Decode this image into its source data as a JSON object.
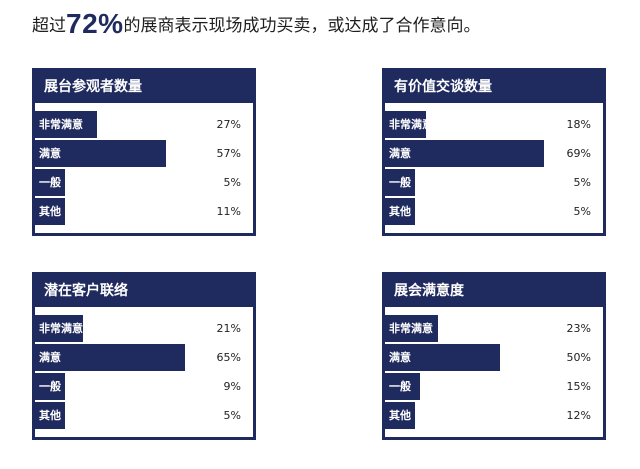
{
  "headline": {
    "prefix": "超过",
    "highlight": "72%",
    "suffix": "的展商表示现场成功买卖，或达成了合作意向。"
  },
  "chart_data": [
    {
      "type": "bar",
      "orientation": "horizontal",
      "title": "展台参观者数量",
      "categories": [
        "非常满意",
        "满意",
        "一般",
        "其他"
      ],
      "values": [
        27,
        57,
        5,
        11
      ],
      "value_labels": [
        "27%",
        "57%",
        "5%",
        "11%"
      ],
      "unit": "%",
      "xlim": [
        0,
        100
      ]
    },
    {
      "type": "bar",
      "orientation": "horizontal",
      "title": "有价值交谈数量",
      "categories": [
        "非常满意",
        "满意",
        "一般",
        "其他"
      ],
      "values": [
        18,
        69,
        5,
        5
      ],
      "value_labels": [
        "18%",
        "69%",
        "5%",
        "5%"
      ],
      "unit": "%",
      "xlim": [
        0,
        100
      ]
    },
    {
      "type": "bar",
      "orientation": "horizontal",
      "title": "潜在客户联络",
      "categories": [
        "非常满意",
        "满意",
        "一般",
        "其他"
      ],
      "values": [
        21,
        65,
        9,
        5
      ],
      "value_labels": [
        "21%",
        "65%",
        "9%",
        "5%"
      ],
      "unit": "%",
      "xlim": [
        0,
        100
      ]
    },
    {
      "type": "bar",
      "orientation": "horizontal",
      "title": "展会满意度",
      "categories": [
        "非常满意",
        "满意",
        "一般",
        "其他"
      ],
      "values": [
        23,
        50,
        15,
        12
      ],
      "value_labels": [
        "23%",
        "50%",
        "15%",
        "12%"
      ],
      "unit": "%",
      "xlim": [
        0,
        100
      ]
    }
  ],
  "colors": {
    "navy": "#1f2a5e",
    "text": "#1f1f1f"
  }
}
